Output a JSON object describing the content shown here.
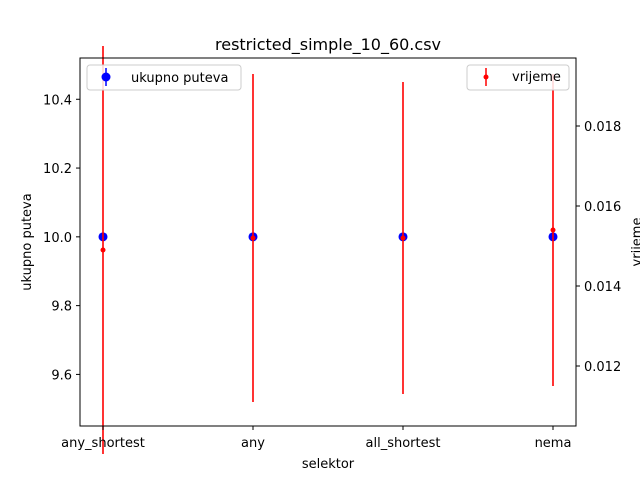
{
  "chart_data": {
    "type": "scatter",
    "title": "restricted_simple_10_60.csv",
    "xlabel": "selektor",
    "ylabel_left": "ukupno puteva",
    "ylabel_right": "vrijeme",
    "categories": [
      "any_shortest",
      "any",
      "all_shortest",
      "nema"
    ],
    "ylim_left": [
      9.45,
      10.52
    ],
    "ylim_right": [
      0.0105,
      0.0197
    ],
    "yticks_left": [
      "9.6",
      "9.8",
      "10.0",
      "10.2",
      "10.4"
    ],
    "yticks_right": [
      "0.012",
      "0.014",
      "0.016",
      "0.018"
    ],
    "grid": false,
    "series": [
      {
        "name": "ukupno puteva",
        "axis": "left",
        "color": "#0000ff",
        "marker": "circle-large",
        "values": [
          10.0,
          10.0,
          10.0,
          10.0
        ],
        "errors": [
          0.0,
          0.0,
          0.0,
          0.0
        ],
        "legend_position": "upper-left"
      },
      {
        "name": "vrijeme",
        "axis": "right",
        "color": "#ff0000",
        "marker": "circle-small",
        "values": [
          0.0149,
          0.0152,
          0.0152,
          0.0154
        ],
        "errors": [
          0.0051,
          0.0041,
          0.0039,
          0.0039
        ],
        "legend_position": "upper-right"
      }
    ]
  }
}
